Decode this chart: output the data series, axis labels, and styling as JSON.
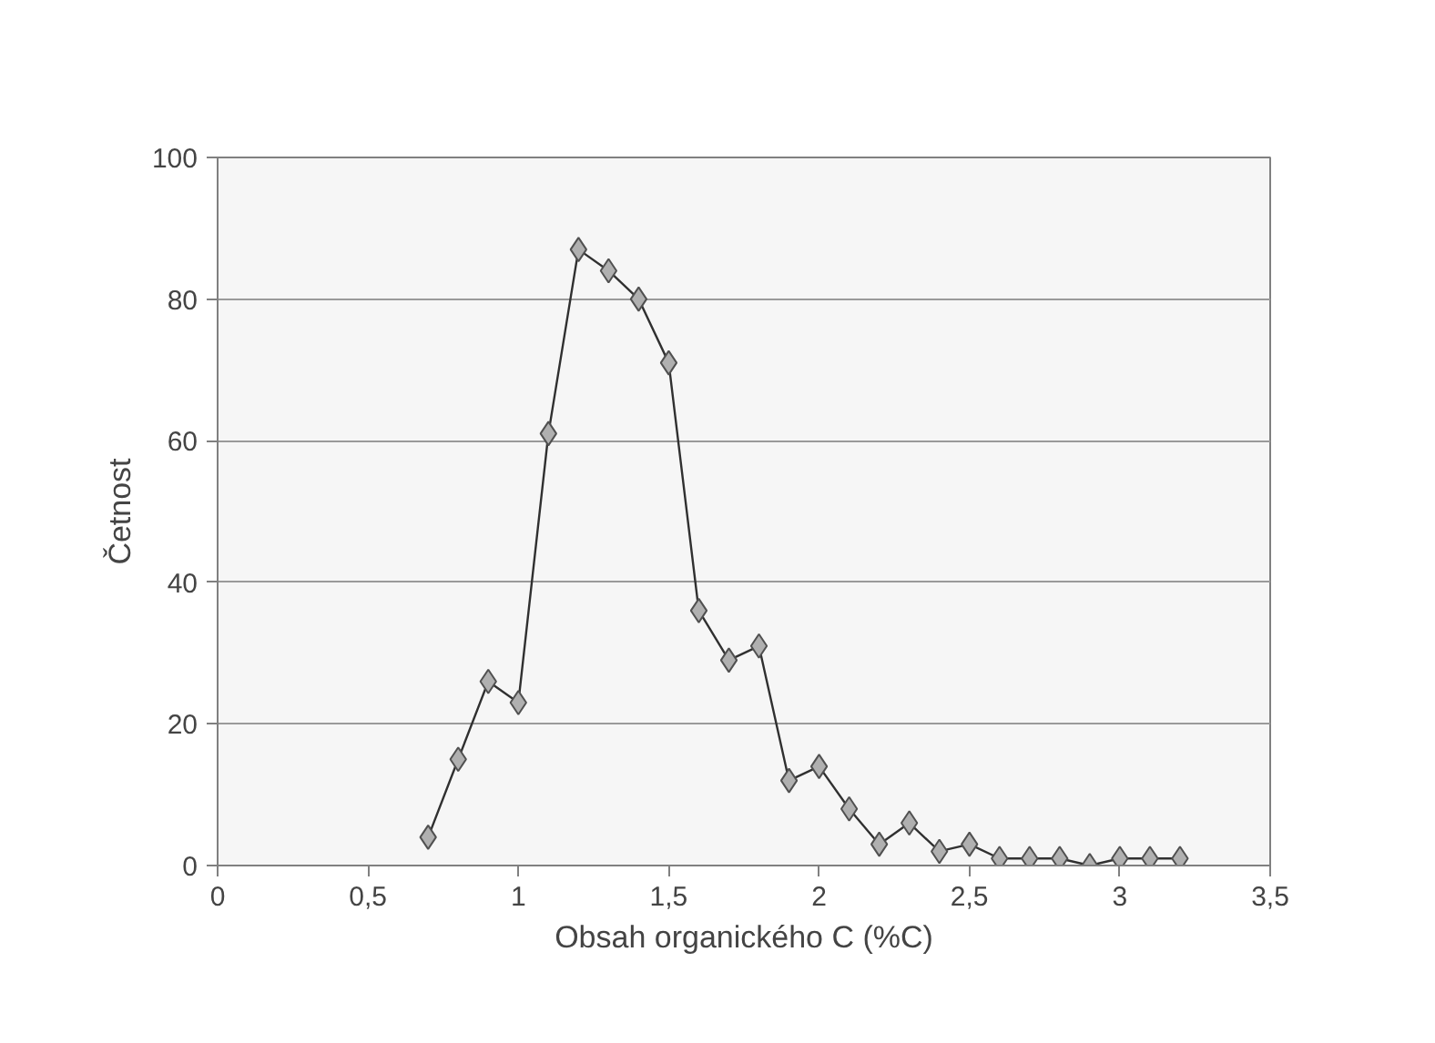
{
  "chart_data": {
    "type": "line",
    "xlabel": "Obsah organického C (%C)",
    "ylabel": "Četnost",
    "x": [
      0.7,
      0.8,
      0.9,
      1.0,
      1.1,
      1.2,
      1.3,
      1.4,
      1.5,
      1.6,
      1.7,
      1.8,
      1.9,
      2.0,
      2.1,
      2.2,
      2.3,
      2.4,
      2.5,
      2.6,
      2.7,
      2.8,
      2.9,
      3.0,
      3.1,
      3.2
    ],
    "series": [
      {
        "color": "#b0b0b0",
        "values": [
          4,
          15,
          26,
          23,
          61,
          87,
          84,
          80,
          71,
          36,
          29,
          31,
          12,
          14,
          8,
          3,
          6,
          2,
          3,
          1,
          1,
          1,
          0,
          1,
          1,
          1
        ]
      }
    ],
    "xlim": [
      0,
      3.5
    ],
    "xticks": [
      0,
      {
        "value": 0.5,
        "label": "0,5"
      },
      1,
      {
        "value": 1.5,
        "label": "1,5"
      },
      2,
      {
        "value": 2.5,
        "label": "2,5"
      },
      3,
      {
        "value": 3.5,
        "label": "3,5"
      }
    ],
    "ylim": [
      0,
      100
    ],
    "yticks": [
      0,
      20,
      40,
      60,
      80,
      100
    ],
    "grid": "y",
    "marker": "diamond",
    "line_style": "solid"
  }
}
